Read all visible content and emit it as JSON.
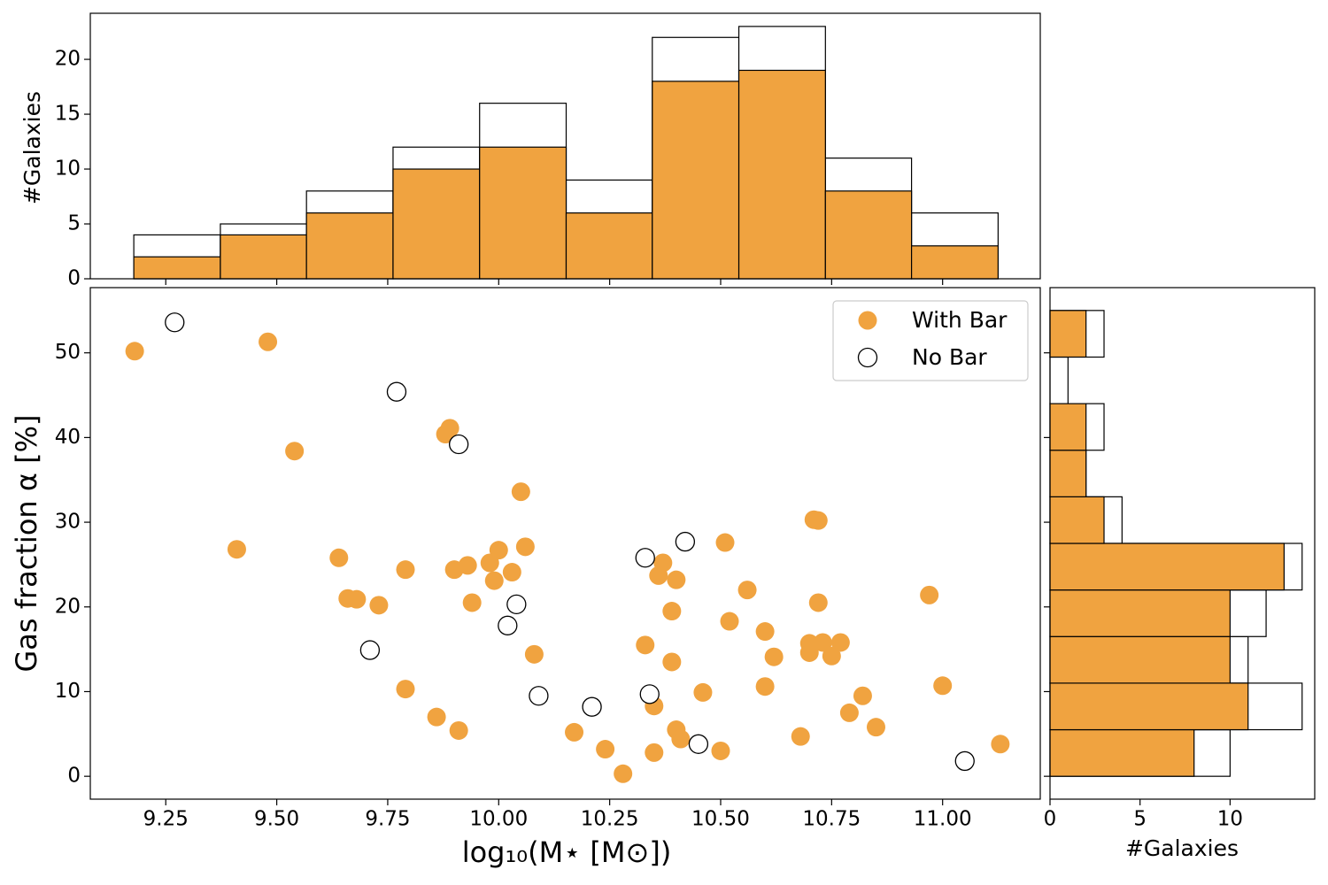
{
  "chart_data": [
    {
      "type": "scatter",
      "xlabel": "log₁₀(M⋆ [M⊙])",
      "ylabel": "Gas fraction α [%]",
      "xlim": [
        9.08,
        11.22
      ],
      "ylim": [
        -2.7,
        57.7
      ],
      "xticks": [
        9.25,
        {
          "value": 9.5,
          "label": "9.50"
        },
        9.75,
        {
          "value": 10,
          "label": "10.00"
        },
        10.25,
        {
          "value": 10.5,
          "label": "10.50"
        },
        10.75,
        {
          "value": 11,
          "label": "11.00"
        }
      ],
      "yticks": [
        0,
        10,
        20,
        30,
        40,
        50
      ],
      "legend": "upper right",
      "series": [
        {
          "name": "With Bar",
          "color": "#f0a340",
          "x": [
            9.18,
            9.48,
            9.54,
            9.41,
            9.64,
            9.66,
            9.68,
            9.73,
            9.79,
            9.79,
            9.86,
            9.91,
            9.89,
            9.88,
            9.9,
            9.93,
            9.94,
            9.98,
            10.0,
            9.99,
            10.03,
            10.05,
            10.06,
            10.08,
            10.17,
            10.24,
            10.28,
            10.33,
            10.37,
            10.36,
            10.4,
            10.39,
            10.39,
            10.35,
            10.35,
            10.4,
            10.41,
            10.46,
            10.5,
            10.51,
            10.52,
            10.56,
            10.6,
            10.6,
            10.62,
            10.68,
            10.7,
            10.7,
            10.71,
            10.72,
            10.72,
            10.73,
            10.75,
            10.77,
            10.79,
            10.82,
            10.85,
            10.97,
            11.0,
            11.13
          ],
          "y": [
            50.2,
            51.3,
            38.4,
            26.8,
            25.8,
            21.0,
            20.9,
            20.2,
            24.4,
            10.3,
            7.0,
            5.4,
            41.1,
            40.4,
            24.4,
            24.9,
            20.5,
            25.2,
            26.7,
            23.1,
            24.1,
            33.6,
            27.1,
            14.4,
            5.2,
            3.2,
            0.3,
            15.5,
            25.2,
            23.7,
            23.2,
            19.5,
            13.5,
            8.3,
            2.8,
            5.5,
            4.4,
            9.9,
            3.0,
            27.6,
            18.3,
            22.0,
            17.1,
            10.6,
            14.1,
            4.7,
            15.7,
            14.6,
            30.3,
            30.2,
            20.5,
            15.8,
            14.2,
            15.8,
            7.5,
            9.5,
            5.8,
            21.4,
            10.7,
            3.8
          ]
        },
        {
          "name": "No Bar",
          "color": "#ffffff",
          "edgecolor": "#000000",
          "x": [
            9.27,
            9.77,
            9.91,
            9.71,
            10.02,
            10.04,
            10.09,
            10.21,
            10.33,
            10.42,
            10.34,
            10.45,
            11.05
          ],
          "y": [
            53.6,
            45.4,
            39.2,
            14.9,
            17.8,
            20.3,
            9.5,
            8.2,
            25.8,
            27.7,
            9.7,
            3.8,
            1.8
          ]
        }
      ]
    },
    {
      "type": "histogram",
      "orientation": "vertical",
      "ylabel": "#Galaxies",
      "xlim": [
        9.08,
        11.22
      ],
      "ylim": [
        0,
        24.2
      ],
      "yticks": [
        0,
        5,
        10,
        15,
        20
      ],
      "bins": [
        9.178,
        9.373,
        9.567,
        9.762,
        9.957,
        10.152,
        10.346,
        10.541,
        10.736,
        10.93,
        11.125
      ],
      "series": [
        {
          "color": "#ffffff",
          "edgecolor": "#000000",
          "values": [
            4,
            5,
            8,
            12,
            16,
            9,
            22,
            23,
            11,
            6
          ]
        },
        {
          "color": "#f0a340",
          "edgecolor": "#000000",
          "values": [
            2,
            4,
            6,
            10,
            12,
            6,
            18,
            19,
            8,
            3
          ]
        }
      ]
    },
    {
      "type": "histogram",
      "orientation": "horizontal",
      "xlabel": "#Galaxies",
      "xlim": [
        0,
        14.7
      ],
      "ylim": [
        -2.7,
        57.7
      ],
      "xticks": [
        0,
        5,
        10
      ],
      "bins": [
        0,
        5.5,
        11,
        16.5,
        22,
        27.5,
        33,
        38.5,
        44,
        49.5,
        55
      ],
      "series": [
        {
          "color": "#ffffff",
          "edgecolor": "#000000",
          "values": [
            10,
            14,
            11,
            12,
            14,
            4,
            2,
            3,
            1,
            3
          ]
        },
        {
          "color": "#f0a340",
          "edgecolor": "#000000",
          "values": [
            8,
            11,
            10,
            10,
            13,
            3,
            2,
            2,
            0,
            2
          ]
        }
      ]
    }
  ]
}
